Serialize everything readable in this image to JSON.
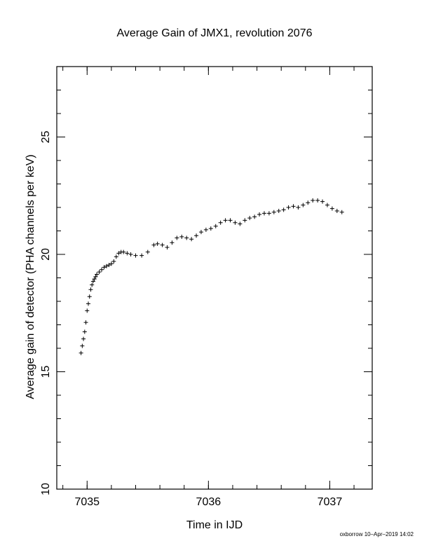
{
  "chart_data": {
    "type": "scatter",
    "title": "Average Gain of JMX1, revolution 2076",
    "xlabel": "Time in IJD",
    "ylabel": "Average gain of detector (PHA channels per keV)",
    "xlim": [
      7034.75,
      7037.35
    ],
    "ylim": [
      10,
      28
    ],
    "xticks": [
      7035,
      7036,
      7037
    ],
    "xtick_labels": [
      "7035",
      "7036",
      "7037"
    ],
    "yticks": [
      10,
      15,
      20,
      25
    ],
    "ytick_labels": [
      "10",
      "15",
      "20",
      "25"
    ],
    "x_minor_step": 0.2,
    "y_minor_step": 1,
    "marker": "plus",
    "color": "#000000",
    "grid": false,
    "legend": "none",
    "series": [
      {
        "x": [
          7034.95,
          7034.96,
          7034.97,
          7034.98,
          7034.99,
          7035.0,
          7035.01,
          7035.02,
          7035.03,
          7035.04,
          7035.05,
          7035.06,
          7035.07,
          7035.08,
          7035.1,
          7035.12,
          7035.14,
          7035.16,
          7035.18,
          7035.2,
          7035.22,
          7035.24,
          7035.26,
          7035.28,
          7035.3,
          7035.33,
          7035.36,
          7035.4,
          7035.45,
          7035.5,
          7035.55,
          7035.58,
          7035.62,
          7035.66,
          7035.7,
          7035.74,
          7035.78,
          7035.82,
          7035.86,
          7035.9,
          7035.94,
          7035.98,
          7036.02,
          7036.06,
          7036.1,
          7036.14,
          7036.18,
          7036.22,
          7036.26,
          7036.3,
          7036.34,
          7036.38,
          7036.42,
          7036.46,
          7036.5,
          7036.54,
          7036.58,
          7036.62,
          7036.66,
          7036.7,
          7036.74,
          7036.78,
          7036.82,
          7036.86,
          7036.9,
          7036.94,
          7036.98,
          7037.02,
          7037.06,
          7037.1
        ],
        "y": [
          15.8,
          16.1,
          16.4,
          16.7,
          17.1,
          17.6,
          17.9,
          18.2,
          18.5,
          18.7,
          18.85,
          18.95,
          19.05,
          19.15,
          19.25,
          19.35,
          19.45,
          19.5,
          19.55,
          19.6,
          19.7,
          19.9,
          20.05,
          20.1,
          20.1,
          20.05,
          20.0,
          19.95,
          19.95,
          20.1,
          20.4,
          20.45,
          20.4,
          20.3,
          20.5,
          20.7,
          20.75,
          20.7,
          20.65,
          20.8,
          20.95,
          21.05,
          21.1,
          21.2,
          21.35,
          21.45,
          21.45,
          21.35,
          21.3,
          21.45,
          21.55,
          21.6,
          21.7,
          21.75,
          21.75,
          21.8,
          21.85,
          21.9,
          22.0,
          22.05,
          22.0,
          22.1,
          22.2,
          22.3,
          22.3,
          22.25,
          22.1,
          21.95,
          21.85,
          21.8
        ]
      }
    ]
  },
  "footer_text": "oxborrow 10–Apr–2019 14:02"
}
